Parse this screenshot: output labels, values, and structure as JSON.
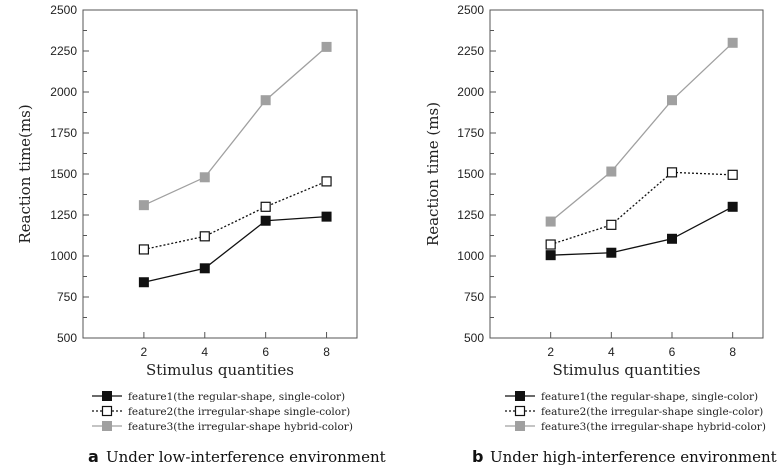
{
  "chart_data": [
    {
      "type": "line",
      "panel_letter": "a",
      "caption": "Under low-interference environment",
      "xlabel": "Stimulus quantities",
      "ylabel": "Reaction time(ms)",
      "x": [
        2,
        4,
        6,
        8
      ],
      "xticks": [
        "2",
        "4",
        "6",
        "8"
      ],
      "ylim": [
        500,
        2500
      ],
      "yticks": [
        "500",
        "750",
        "1000",
        "1250",
        "1500",
        "1750",
        "2000",
        "2250",
        "2500"
      ],
      "legend_position": "bottom",
      "series": [
        {
          "name": "feature1(the regular-shape, single-color)",
          "values": [
            840,
            925,
            1215,
            1240
          ],
          "color": "#111111",
          "marker": "filled-square",
          "line": "solid"
        },
        {
          "name": "feature2(the irregular-shape single-color)",
          "values": [
            1040,
            1120,
            1300,
            1455
          ],
          "color": "#111111",
          "marker": "open-square",
          "line": "dotted"
        },
        {
          "name": "feature3(the irregular-shape hybrid-color)",
          "values": [
            1310,
            1480,
            1950,
            2275
          ],
          "color": "#a0a0a0",
          "marker": "gray-square",
          "line": "solid"
        }
      ]
    },
    {
      "type": "line",
      "panel_letter": "b",
      "caption": "Under high-interference environment",
      "xlabel": "Stimulus quantities",
      "ylabel": "Reaction time (ms)",
      "x": [
        2,
        4,
        6,
        8
      ],
      "xticks": [
        "2",
        "4",
        "6",
        "8"
      ],
      "ylim": [
        500,
        2500
      ],
      "yticks": [
        "500",
        "750",
        "1000",
        "1250",
        "1500",
        "1750",
        "2000",
        "2250",
        "2500"
      ],
      "legend_position": "bottom",
      "series": [
        {
          "name": "feature1(the regular-shape, single-color)",
          "values": [
            1005,
            1020,
            1105,
            1300
          ],
          "color": "#111111",
          "marker": "filled-square",
          "line": "solid"
        },
        {
          "name": "feature2(the irregular-shape single-color)",
          "values": [
            1070,
            1190,
            1510,
            1495
          ],
          "color": "#111111",
          "marker": "open-square",
          "line": "dotted"
        },
        {
          "name": "feature3(the irregular-shape hybrid-color)",
          "values": [
            1210,
            1515,
            1950,
            2300
          ],
          "color": "#a0a0a0",
          "marker": "gray-square",
          "line": "solid"
        }
      ]
    }
  ]
}
